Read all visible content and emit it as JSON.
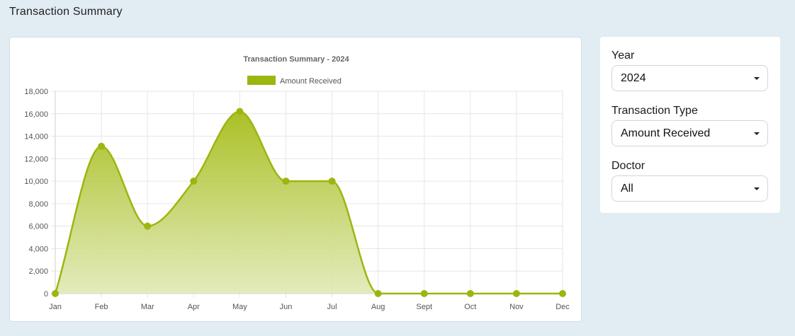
{
  "page": {
    "title": "Transaction Summary"
  },
  "filters": {
    "year_label": "Year",
    "year_value": "2024",
    "type_label": "Transaction Type",
    "type_value": "Amount Received",
    "doctor_label": "Doctor",
    "doctor_value": "All"
  },
  "chart_data": {
    "type": "area",
    "title": "Transaction Summary - 2024",
    "categories": [
      "Jan",
      "Feb",
      "Mar",
      "Apr",
      "May",
      "Jun",
      "Jul",
      "Aug",
      "Sept",
      "Oct",
      "Nov",
      "Dec"
    ],
    "series": [
      {
        "name": "Amount Received",
        "values": [
          0,
          13100,
          6000,
          10000,
          16200,
          10000,
          10000,
          0,
          0,
          0,
          0,
          0
        ]
      }
    ],
    "ylim": [
      0,
      18000
    ],
    "yticks": [
      "0",
      "2,000",
      "4,000",
      "6,000",
      "8,000",
      "10,000",
      "12,000",
      "14,000",
      "16,000",
      "18,000"
    ],
    "grid": true,
    "legend": "top",
    "colors": {
      "line": "#9db50f",
      "fill_top": "#a7bd1a",
      "fill_bottom": "#e0e9b5"
    }
  }
}
